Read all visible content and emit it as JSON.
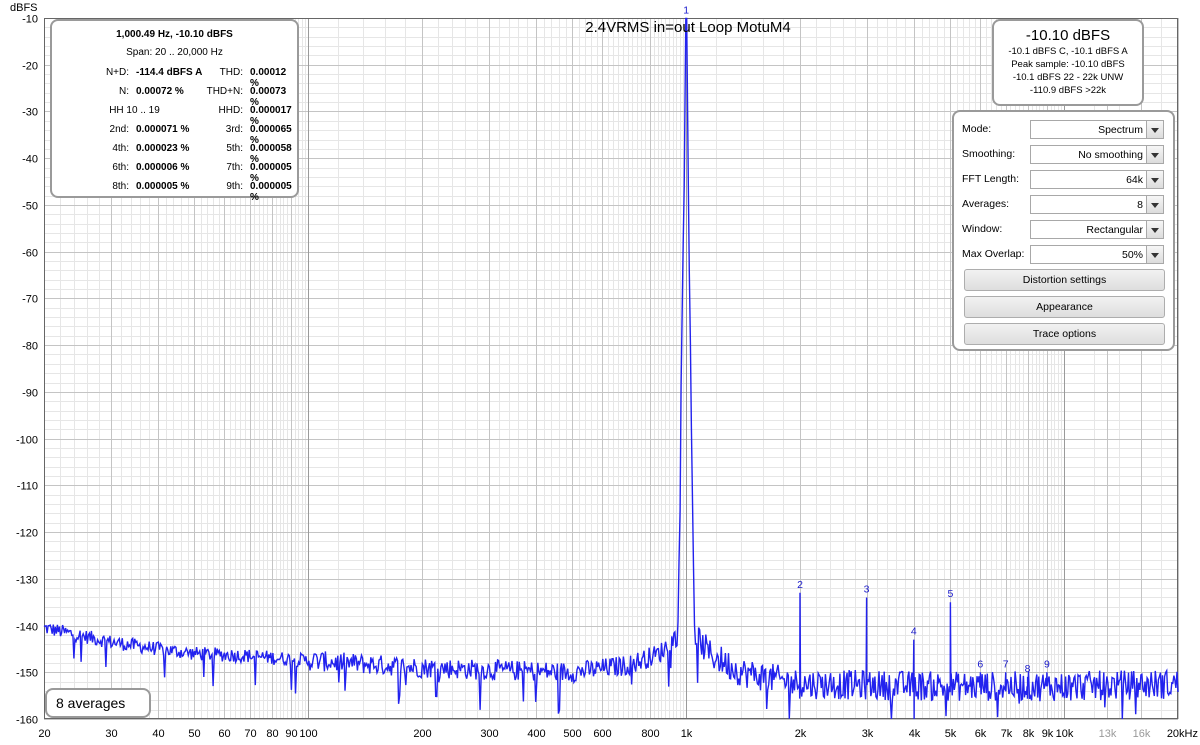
{
  "chart_data": {
    "type": "line",
    "title": "2.4VRMS in=out Loop MotuM4",
    "xlabel": "",
    "ylabel": "dBFS",
    "xscale": "log",
    "xlim": [
      20,
      20000
    ],
    "ylim": [
      -160,
      -10
    ],
    "grid": true,
    "y_ticks": [
      -10,
      -20,
      -30,
      -40,
      -50,
      -60,
      -70,
      -80,
      -90,
      -100,
      -110,
      -120,
      -130,
      -140,
      -150,
      -160
    ],
    "x_ticks": [
      {
        "value": 20,
        "label": "20"
      },
      {
        "value": 30,
        "label": "30"
      },
      {
        "value": 40,
        "label": "40"
      },
      {
        "value": 50,
        "label": "50"
      },
      {
        "value": 60,
        "label": "60"
      },
      {
        "value": 70,
        "label": "70"
      },
      {
        "value": 80,
        "label": "80"
      },
      {
        "value": 90,
        "label": "90"
      },
      {
        "value": 100,
        "label": "100"
      },
      {
        "value": 200,
        "label": "200"
      },
      {
        "value": 300,
        "label": "300"
      },
      {
        "value": 400,
        "label": "400"
      },
      {
        "value": 500,
        "label": "500"
      },
      {
        "value": 600,
        "label": "600"
      },
      {
        "value": 800,
        "label": "800"
      },
      {
        "value": 1000,
        "label": "1k"
      },
      {
        "value": 2000,
        "label": "2k"
      },
      {
        "value": 3000,
        "label": "3k"
      },
      {
        "value": 4000,
        "label": "4k"
      },
      {
        "value": 5000,
        "label": "5k"
      },
      {
        "value": 6000,
        "label": "6k"
      },
      {
        "value": 7000,
        "label": "7k"
      },
      {
        "value": 8000,
        "label": "8k"
      },
      {
        "value": 9000,
        "label": "9k"
      },
      {
        "value": 10000,
        "label": "10k"
      },
      {
        "value": 13000,
        "label": "13k",
        "muted": true
      },
      {
        "value": 16000,
        "label": "16k",
        "muted": true
      },
      {
        "value": 20000,
        "label": "20kHz"
      }
    ],
    "series": [
      {
        "color": "#2222ee",
        "noise_floor": [
          [
            20,
            -140.5
          ],
          [
            30,
            -143.5
          ],
          [
            40,
            -145
          ],
          [
            50,
            -146
          ],
          [
            70,
            -146.5
          ],
          [
            100,
            -147.5
          ],
          [
            200,
            -149
          ],
          [
            300,
            -149.5
          ],
          [
            500,
            -150
          ],
          [
            700,
            -148.5
          ],
          [
            850,
            -146
          ],
          [
            950,
            -142
          ],
          [
            1000,
            -10.1
          ],
          [
            1050,
            -142
          ],
          [
            1150,
            -146
          ],
          [
            1400,
            -150
          ],
          [
            2000,
            -152.5
          ],
          [
            5000,
            -153
          ],
          [
            10000,
            -153
          ],
          [
            20000,
            -152.5
          ]
        ],
        "peaks": [
          {
            "label": "1",
            "freq": 1000,
            "level": -10.1
          },
          {
            "label": "2",
            "freq": 2000,
            "level": -133
          },
          {
            "label": "3",
            "freq": 3000,
            "level": -134
          },
          {
            "label": "4",
            "freq": 4000,
            "level": -143
          },
          {
            "label": "5",
            "freq": 5000,
            "level": -135
          },
          {
            "label": "6",
            "freq": 6000,
            "level": -150
          },
          {
            "label": "7",
            "freq": 7000,
            "level": -150
          },
          {
            "label": "8",
            "freq": 8000,
            "level": -151
          },
          {
            "label": "9",
            "freq": 9000,
            "level": -150
          }
        ]
      }
    ]
  },
  "stats": {
    "header": "1,000.49 Hz, -10.10 dBFS",
    "span": "Span: 20 .. 20,000 Hz",
    "rows": [
      {
        "l1": "N+D:",
        "v1": "-114.4 dBFS A",
        "l2": "THD:",
        "v2": "0.00012 %"
      },
      {
        "l1": "N:",
        "v1": "0.00072 %",
        "l2": "THD+N:",
        "v2": "0.00073 %"
      },
      {
        "l1": "",
        "v1": "",
        "l2": "HHD:",
        "v2": "0.000017 %",
        "hh": "HH 10 .. 19"
      },
      {
        "l1": "2nd:",
        "v1": "0.000071 %",
        "l2": "3rd:",
        "v2": "0.000065 %"
      },
      {
        "l1": "4th:",
        "v1": "0.000023 %",
        "l2": "5th:",
        "v2": "0.000058 %"
      },
      {
        "l1": "6th:",
        "v1": "0.000006 %",
        "l2": "7th:",
        "v2": "0.000005 %"
      },
      {
        "l1": "8th:",
        "v1": "0.000005 %",
        "l2": "9th:",
        "v2": "0.000005 %"
      }
    ]
  },
  "level": {
    "main": "-10.10 dBFS",
    "lines": [
      "-10.1 dBFS C, -10.1 dBFS A",
      "Peak sample: -10.10 dBFS",
      "-10.1 dBFS 22 - 22k UNW",
      "-110.9 dBFS >22k"
    ]
  },
  "settings": {
    "rows": [
      {
        "label": "Mode:",
        "value": "Spectrum"
      },
      {
        "label": "Smoothing:",
        "value": "No  smoothing"
      },
      {
        "label": "FFT Length:",
        "value": "64k"
      },
      {
        "label": "Averages:",
        "value": "8"
      },
      {
        "label": "Window:",
        "value": "Rectangular"
      },
      {
        "label": "Max Overlap:",
        "value": "50%"
      }
    ],
    "buttons": {
      "distortion": "Distortion settings",
      "appearance": "Appearance",
      "trace": "Trace options"
    }
  },
  "averages_label": "8 averages"
}
